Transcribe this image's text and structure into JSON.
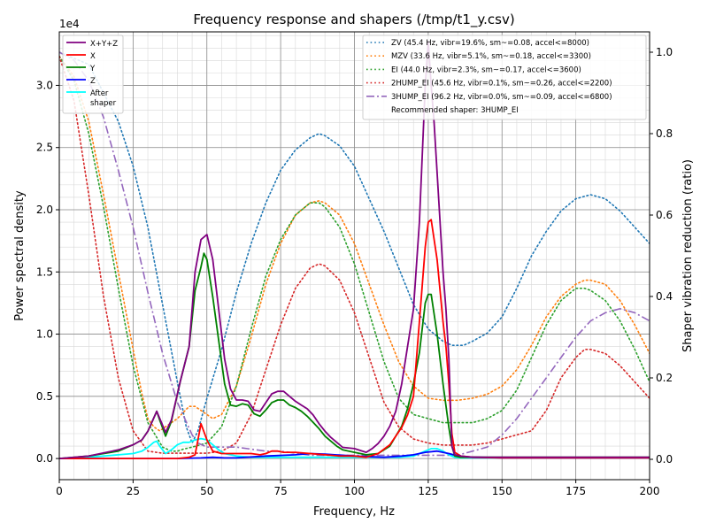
{
  "chart_data": {
    "type": "line",
    "title": "Frequency response and shapers (/tmp/t1_y.csv)",
    "xlabel": "Frequency, Hz",
    "ylabel": "Power spectral density",
    "y2label": "Shaper vibration reduction (ratio)",
    "exponent_label": "1e4",
    "xlim": [
      0,
      200
    ],
    "ylim": [
      -1700,
      34300
    ],
    "y2lim": [
      -0.05,
      1.05
    ],
    "x_ticks": [
      0,
      25,
      50,
      75,
      100,
      125,
      150,
      175,
      200
    ],
    "y_ticks": [
      0.0,
      0.5,
      1.0,
      1.5,
      2.0,
      2.5,
      3.0
    ],
    "y2_ticks": [
      0.0,
      0.2,
      0.4,
      0.6,
      0.8,
      1.0
    ],
    "grid": true,
    "legend_left_position": "top-left",
    "legend_right_position": "top-right",
    "psd_series": [
      {
        "name": "X+Y+Z",
        "color": "#800080",
        "x": [
          0,
          10,
          20,
          25,
          28,
          30,
          33,
          36,
          38,
          41,
          44,
          46,
          48,
          50,
          52,
          54,
          56,
          58,
          60,
          62,
          64,
          66,
          68,
          70,
          72,
          74,
          76,
          78,
          80,
          82,
          84,
          86,
          88,
          90,
          92,
          94,
          96,
          100,
          104,
          106,
          108,
          110,
          112,
          114,
          116,
          118,
          120,
          122,
          124,
          125,
          126,
          127,
          128,
          130,
          131,
          132,
          133,
          134,
          136,
          140,
          150,
          160,
          170,
          180,
          190,
          200
        ],
        "y": [
          0,
          200,
          700,
          1100,
          1500,
          2200,
          3800,
          2100,
          3100,
          6200,
          9000,
          15000,
          17600,
          18000,
          16000,
          12000,
          8000,
          5600,
          4700,
          4700,
          4600,
          3900,
          3800,
          4500,
          5200,
          5400,
          5400,
          5000,
          4600,
          4300,
          4000,
          3500,
          2800,
          2200,
          1700,
          1300,
          900,
          800,
          500,
          800,
          1200,
          1800,
          2600,
          3800,
          6000,
          9000,
          12000,
          19000,
          30000,
          33500,
          30000,
          27000,
          23000,
          15000,
          12000,
          8000,
          1000,
          300,
          200,
          100,
          100,
          100,
          100,
          100,
          100,
          100
        ]
      },
      {
        "name": "X",
        "color": "#ff0000",
        "x": [
          0,
          10,
          20,
          30,
          40,
          44,
          46,
          47,
          48,
          50,
          52,
          55,
          60,
          65,
          68,
          70,
          72,
          74,
          76,
          80,
          85,
          90,
          95,
          100,
          104,
          108,
          112,
          116,
          118,
          120,
          122,
          124,
          125,
          126,
          128,
          130,
          131,
          132,
          133,
          134,
          136,
          140,
          150,
          160,
          200
        ],
        "y": [
          0,
          0,
          0,
          0,
          0,
          100,
          300,
          1500,
          2800,
          1500,
          600,
          400,
          400,
          400,
          300,
          400,
          600,
          600,
          500,
          500,
          400,
          300,
          200,
          200,
          100,
          400,
          1100,
          2500,
          3500,
          5000,
          11000,
          17000,
          19000,
          19200,
          16000,
          11000,
          9000,
          6000,
          2000,
          500,
          200,
          100,
          50,
          50,
          50
        ]
      },
      {
        "name": "Y",
        "color": "#008000",
        "x": [
          0,
          10,
          15,
          20,
          25,
          28,
          30,
          33,
          34,
          36,
          38,
          41,
          44,
          46,
          48,
          49,
          50,
          52,
          54,
          56,
          58,
          60,
          62,
          64,
          66,
          68,
          70,
          72,
          74,
          76,
          78,
          80,
          82,
          84,
          86,
          88,
          90,
          92,
          94,
          96,
          100,
          104,
          108,
          112,
          116,
          118,
          120,
          122,
          124,
          125,
          126,
          128,
          130,
          132,
          133,
          134,
          136,
          140,
          150,
          200
        ],
        "y": [
          0,
          200,
          400,
          600,
          1100,
          1500,
          2200,
          3800,
          3100,
          1800,
          3000,
          6200,
          9000,
          13500,
          15400,
          16500,
          16000,
          13000,
          9500,
          6000,
          4300,
          4200,
          4400,
          4300,
          3600,
          3400,
          3900,
          4500,
          4700,
          4700,
          4300,
          4100,
          3800,
          3400,
          2900,
          2400,
          1800,
          1400,
          1000,
          700,
          500,
          300,
          400,
          1000,
          2600,
          4000,
          6000,
          8500,
          12500,
          13200,
          13200,
          10000,
          6000,
          2500,
          1000,
          200,
          100,
          100,
          100,
          100
        ]
      },
      {
        "name": "Z",
        "color": "#0000ff",
        "x": [
          0,
          20,
          40,
          48,
          52,
          56,
          60,
          70,
          80,
          85,
          90,
          100,
          110,
          116,
          120,
          124,
          128,
          132,
          136,
          150,
          200
        ],
        "y": [
          0,
          0,
          0,
          50,
          100,
          50,
          50,
          200,
          300,
          400,
          350,
          200,
          100,
          200,
          300,
          500,
          600,
          400,
          150,
          50,
          50
        ]
      },
      {
        "name": "After\nshaper",
        "color": "#00ffff",
        "x": [
          0,
          5,
          10,
          20,
          25,
          28,
          30,
          32,
          33,
          34,
          36,
          38,
          40,
          42,
          44,
          46,
          48,
          50,
          52,
          54,
          56,
          58,
          60,
          65,
          70,
          80,
          90,
          100,
          110,
          115,
          120,
          122,
          124,
          126,
          128,
          130,
          132,
          134,
          136,
          140,
          150,
          200
        ],
        "y": [
          0,
          0,
          100,
          300,
          400,
          600,
          900,
          1300,
          1400,
          1000,
          400,
          700,
          1100,
          1300,
          1300,
          1500,
          1600,
          1500,
          1100,
          700,
          400,
          300,
          200,
          100,
          100,
          100,
          100,
          100,
          100,
          100,
          200,
          400,
          600,
          800,
          800,
          600,
          300,
          100,
          50,
          50,
          50,
          50
        ]
      }
    ],
    "shaper_series": [
      {
        "name": "ZV (45.4 Hz, vibr=19.6%, sm~=0.08, accel<=8000)",
        "color": "#1f77b4",
        "style": "dotted",
        "x": [
          0,
          10,
          20,
          25,
          30,
          35,
          40,
          43,
          45,
          47,
          50,
          55,
          60,
          65,
          70,
          75,
          80,
          85,
          88,
          90,
          95,
          100,
          105,
          110,
          115,
          120,
          125,
          130,
          133,
          135,
          137,
          140,
          145,
          150,
          155,
          160,
          165,
          170,
          175,
          180,
          185,
          190,
          195,
          200
        ],
        "y": [
          1.0,
          0.97,
          0.83,
          0.72,
          0.57,
          0.38,
          0.19,
          0.08,
          0.04,
          0.07,
          0.15,
          0.27,
          0.41,
          0.53,
          0.63,
          0.71,
          0.76,
          0.79,
          0.8,
          0.795,
          0.77,
          0.72,
          0.64,
          0.56,
          0.47,
          0.38,
          0.32,
          0.29,
          0.28,
          0.28,
          0.28,
          0.29,
          0.31,
          0.35,
          0.42,
          0.5,
          0.56,
          0.61,
          0.64,
          0.65,
          0.64,
          0.61,
          0.57,
          0.53
        ]
      },
      {
        "name": "MZV (33.6 Hz, vibr=5.1%, sm~=0.18, accel<=3300)",
        "color": "#ff7f0e",
        "style": "dotted",
        "x": [
          0,
          5,
          10,
          15,
          20,
          25,
          28,
          30,
          32,
          34,
          36,
          40,
          44,
          46,
          48,
          50,
          52,
          55,
          60,
          65,
          70,
          75,
          80,
          85,
          88,
          90,
          95,
          100,
          105,
          110,
          115,
          120,
          125,
          130,
          135,
          140,
          145,
          150,
          155,
          160,
          165,
          170,
          175,
          178,
          180,
          185,
          190,
          195,
          200
        ],
        "y": [
          0.99,
          0.94,
          0.83,
          0.65,
          0.46,
          0.27,
          0.16,
          0.1,
          0.08,
          0.07,
          0.08,
          0.1,
          0.13,
          0.13,
          0.12,
          0.11,
          0.1,
          0.11,
          0.18,
          0.3,
          0.43,
          0.53,
          0.6,
          0.63,
          0.635,
          0.63,
          0.6,
          0.53,
          0.43,
          0.33,
          0.24,
          0.18,
          0.15,
          0.145,
          0.145,
          0.15,
          0.16,
          0.18,
          0.22,
          0.28,
          0.35,
          0.4,
          0.43,
          0.44,
          0.44,
          0.43,
          0.39,
          0.33,
          0.26
        ]
      },
      {
        "name": "EI (44.0 Hz, vibr=2.3%, sm~=0.17, accel<=3600)",
        "color": "#2ca02c",
        "style": "dotted",
        "x": [
          0,
          5,
          10,
          15,
          20,
          25,
          30,
          35,
          38,
          40,
          42,
          45,
          50,
          55,
          60,
          65,
          70,
          75,
          80,
          85,
          88,
          90,
          95,
          100,
          105,
          110,
          115,
          120,
          125,
          130,
          135,
          140,
          145,
          150,
          155,
          160,
          165,
          170,
          175,
          178,
          180,
          185,
          190,
          195,
          200
        ],
        "y": [
          0.99,
          0.93,
          0.8,
          0.62,
          0.42,
          0.23,
          0.09,
          0.03,
          0.02,
          0.02,
          0.025,
          0.03,
          0.04,
          0.08,
          0.18,
          0.32,
          0.45,
          0.54,
          0.6,
          0.63,
          0.63,
          0.62,
          0.57,
          0.48,
          0.36,
          0.24,
          0.15,
          0.11,
          0.1,
          0.09,
          0.09,
          0.09,
          0.1,
          0.12,
          0.17,
          0.25,
          0.33,
          0.39,
          0.42,
          0.42,
          0.415,
          0.39,
          0.34,
          0.27,
          0.19
        ]
      },
      {
        "name": "2HUMP_EI (45.6 Hz, vibr=0.1%, sm~=0.26, accel<=2200)",
        "color": "#d62728",
        "style": "dotted",
        "x": [
          0,
          5,
          10,
          15,
          20,
          25,
          30,
          35,
          40,
          45,
          50,
          55,
          60,
          65,
          70,
          75,
          80,
          85,
          88,
          90,
          95,
          100,
          105,
          110,
          115,
          120,
          125,
          130,
          135,
          140,
          145,
          150,
          155,
          160,
          165,
          170,
          175,
          178,
          180,
          185,
          190,
          195,
          200
        ],
        "y": [
          0.99,
          0.88,
          0.65,
          0.4,
          0.2,
          0.07,
          0.02,
          0.015,
          0.015,
          0.015,
          0.015,
          0.02,
          0.04,
          0.11,
          0.22,
          0.33,
          0.42,
          0.47,
          0.48,
          0.475,
          0.44,
          0.36,
          0.25,
          0.14,
          0.08,
          0.05,
          0.04,
          0.035,
          0.035,
          0.035,
          0.04,
          0.05,
          0.06,
          0.07,
          0.12,
          0.2,
          0.25,
          0.27,
          0.27,
          0.26,
          0.23,
          0.19,
          0.15
        ]
      },
      {
        "name": "3HUMP_EI (96.2 Hz, vibr=0.0%, sm~=0.09, accel<=6800)",
        "color": "#9467bd",
        "style": "dashdot",
        "x": [
          0,
          5,
          10,
          15,
          20,
          25,
          30,
          35,
          40,
          45,
          47,
          50,
          55,
          60,
          65,
          70,
          75,
          80,
          85,
          90,
          95,
          100,
          105,
          110,
          115,
          120,
          125,
          130,
          135,
          140,
          145,
          150,
          155,
          160,
          165,
          170,
          175,
          180,
          185,
          190,
          195,
          200
        ],
        "y": [
          1.0,
          0.98,
          0.93,
          0.84,
          0.71,
          0.57,
          0.41,
          0.26,
          0.14,
          0.06,
          0.04,
          0.03,
          0.03,
          0.03,
          0.025,
          0.02,
          0.02,
          0.015,
          0.01,
          0.01,
          0.01,
          0.01,
          0.01,
          0.01,
          0.01,
          0.01,
          0.01,
          0.01,
          0.01,
          0.02,
          0.03,
          0.06,
          0.1,
          0.15,
          0.2,
          0.25,
          0.3,
          0.34,
          0.36,
          0.37,
          0.36,
          0.34
        ]
      }
    ],
    "recommendation": "Recommended shaper: 3HUMP_EI"
  }
}
